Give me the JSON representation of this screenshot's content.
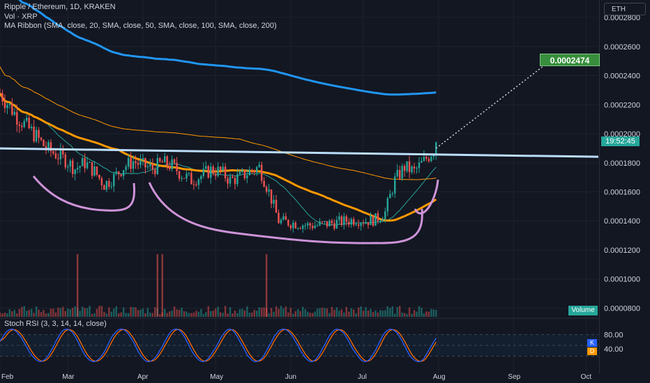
{
  "legend": {
    "line1": "Ripple / Ethereum, 1D, KRAKEN",
    "line2": "Vol · XRP",
    "line3": "MA Ribbon (SMA, close, 20, SMA, close, 50, SMA, close, 100, SMA, close, 200)"
  },
  "currency_button": "ETH",
  "target_price_label": "0.0002474",
  "countdown_label": "19:52:45",
  "volume_badge": "Volume",
  "rsi_title": "Stoch RSI (3, 3, 14, 14, close)",
  "rsi_k_badge": "K",
  "rsi_d_badge": "D",
  "colors": {
    "background": "#131722",
    "up": "#26a69a",
    "down": "#ef5350",
    "ma20": "#26a69a",
    "ma50": "#ff9800",
    "ma100": "#ff9800",
    "ma200": "#2196f3",
    "resistance": "#bbdefb",
    "pattern": "#ce93d8",
    "rsi_k": "#2962ff",
    "rsi_d": "#ff6d00"
  },
  "chart_data": {
    "type": "candlestick",
    "symbol": "Ripple / Ethereum",
    "interval": "1D",
    "exchange": "KRAKEN",
    "y_ticks": [
      "0.0002800",
      "0.0002600",
      "0.0002400",
      "0.0002200",
      "0.0002000",
      "0.0001800",
      "0.0001600",
      "0.0001400",
      "0.0001200",
      "0.0001000",
      "0.0000800"
    ],
    "ylim": [
      7.4e-05,
      0.000292
    ],
    "x_ticks": [
      "Feb",
      "Mar",
      "Apr",
      "May",
      "Jun",
      "Jul",
      "Aug",
      "Sep",
      "Oct"
    ],
    "x_tick_dates": [
      "2021-02-01",
      "2021-03-01",
      "2021-04-01",
      "2021-05-01",
      "2021-06-01",
      "2021-07-01",
      "2021-08-01",
      "2021-09-01",
      "2021-10-01"
    ],
    "xlim": [
      "2021-02-01",
      "2021-10-06"
    ],
    "rsi_ticks": [
      "80.00",
      "40.00"
    ],
    "rsi_ylim": [
      0,
      100
    ],
    "close_series": {
      "dates": [
        "2021-02-01",
        "2021-02-04",
        "2021-02-08",
        "2021-02-12",
        "2021-02-16",
        "2021-02-20",
        "2021-02-24",
        "2021-02-28",
        "2021-03-04",
        "2021-03-08",
        "2021-03-12",
        "2021-03-16",
        "2021-03-20",
        "2021-03-24",
        "2021-03-28",
        "2021-04-01",
        "2021-04-05",
        "2021-04-09",
        "2021-04-13",
        "2021-04-17",
        "2021-04-21",
        "2021-04-25",
        "2021-04-29",
        "2021-05-03",
        "2021-05-07",
        "2021-05-11",
        "2021-05-15",
        "2021-05-19",
        "2021-05-23",
        "2021-05-27",
        "2021-05-31",
        "2021-06-04",
        "2021-06-08",
        "2021-06-12",
        "2021-06-16",
        "2021-06-20",
        "2021-06-24",
        "2021-06-28",
        "2021-07-02",
        "2021-07-06",
        "2021-07-10",
        "2021-07-14",
        "2021-07-18",
        "2021-07-22",
        "2021-07-26",
        "2021-07-30",
        "2021-07-31"
      ],
      "close": [
        0.000228,
        0.000221,
        0.000212,
        0.000205,
        0.000198,
        0.00019,
        0.000186,
        0.000182,
        0.000176,
        0.00018,
        0.000174,
        0.000165,
        0.00017,
        0.000177,
        0.000181,
        0.000178,
        0.000176,
        0.00018,
        0.000178,
        0.000172,
        0.000168,
        0.000171,
        0.000175,
        0.000174,
        0.000168,
        0.00017,
        0.000174,
        0.000177,
        0.00016,
        0.00014,
        0.000139,
        0.000138,
        0.000137,
        0.000137,
        0.000138,
        0.000139,
        0.00014,
        0.000141,
        0.00014,
        0.000141,
        0.000146,
        0.000168,
        0.000177,
        0.000174,
        0.000181,
        0.000189,
        0.000196
      ]
    },
    "volume": {
      "spikes": [
        {
          "date": "2021-03-05",
          "value": "high"
        },
        {
          "date": "2021-04-07",
          "value": "high"
        },
        {
          "date": "2021-04-09",
          "value": "high"
        },
        {
          "date": "2021-05-22",
          "value": "high"
        }
      ]
    },
    "annotations": {
      "target_price": 0.0002474,
      "horizontal_resistance": 0.000187,
      "projection_start": {
        "date": "2021-07-31",
        "price": 0.00019
      },
      "projection_end": {
        "date": "2021-09-14",
        "price": 0.0002474
      }
    }
  }
}
